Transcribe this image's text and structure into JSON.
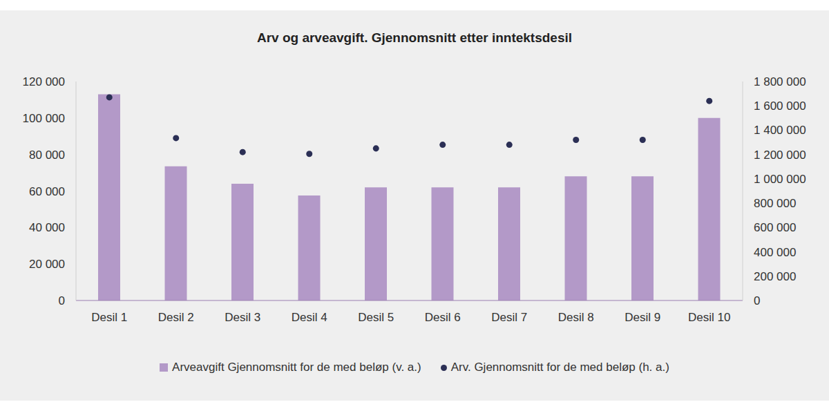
{
  "chart_data": {
    "type": "bar",
    "title": "Arv og arveavgift. Gjennomsnitt etter inntektsdesil",
    "categories": [
      "Desil 1",
      "Desil 2",
      "Desil 3",
      "Desil 4",
      "Desil 5",
      "Desil 6",
      "Desil 7",
      "Desil 8",
      "Desil 9",
      "Desil 10"
    ],
    "series": [
      {
        "name": "Arveavgift Gjennomsnitt for de med beløp (v. a.)",
        "type": "bar",
        "color": "#b399c8",
        "values": [
          113000,
          73500,
          64000,
          57500,
          62000,
          62000,
          62000,
          68000,
          68000,
          100000
        ]
      },
      {
        "name": "Arv. Gjennomsnitt for de med beløp (h. a.)",
        "type": "scatter",
        "axis": "y2",
        "color": "#2b2f55",
        "marker": "circle",
        "values": [
          1670000,
          1335000,
          1220000,
          1205000,
          1250000,
          1280000,
          1280000,
          1320000,
          1320000,
          1640000
        ]
      }
    ],
    "ylim": [
      0,
      120000
    ],
    "yticks": [
      0,
      {
        "value": 20000,
        "label": "20 000"
      },
      {
        "value": 40000,
        "label": "40 000"
      },
      {
        "value": 60000,
        "label": "60 000"
      },
      {
        "value": 80000,
        "label": "80 000"
      },
      {
        "value": 100000,
        "label": "100 000"
      },
      {
        "value": 120000,
        "label": "120 000"
      }
    ],
    "y2lim": [
      0,
      1800000
    ],
    "y2ticks": [
      0,
      {
        "value": 200000,
        "label": "200 000"
      },
      {
        "value": 400000,
        "label": "400 000"
      },
      {
        "value": 600000,
        "label": "600 000"
      },
      {
        "value": 800000,
        "label": "800 000"
      },
      {
        "value": 1000000,
        "label": "1 000 000"
      },
      {
        "value": 1200000,
        "label": "1 200 000"
      },
      {
        "value": 1400000,
        "label": "1 400 000"
      },
      {
        "value": 1600000,
        "label": "1 600 000"
      },
      {
        "value": 1800000,
        "label": "1 800 000"
      }
    ],
    "grid": false,
    "legend": "bottom"
  }
}
